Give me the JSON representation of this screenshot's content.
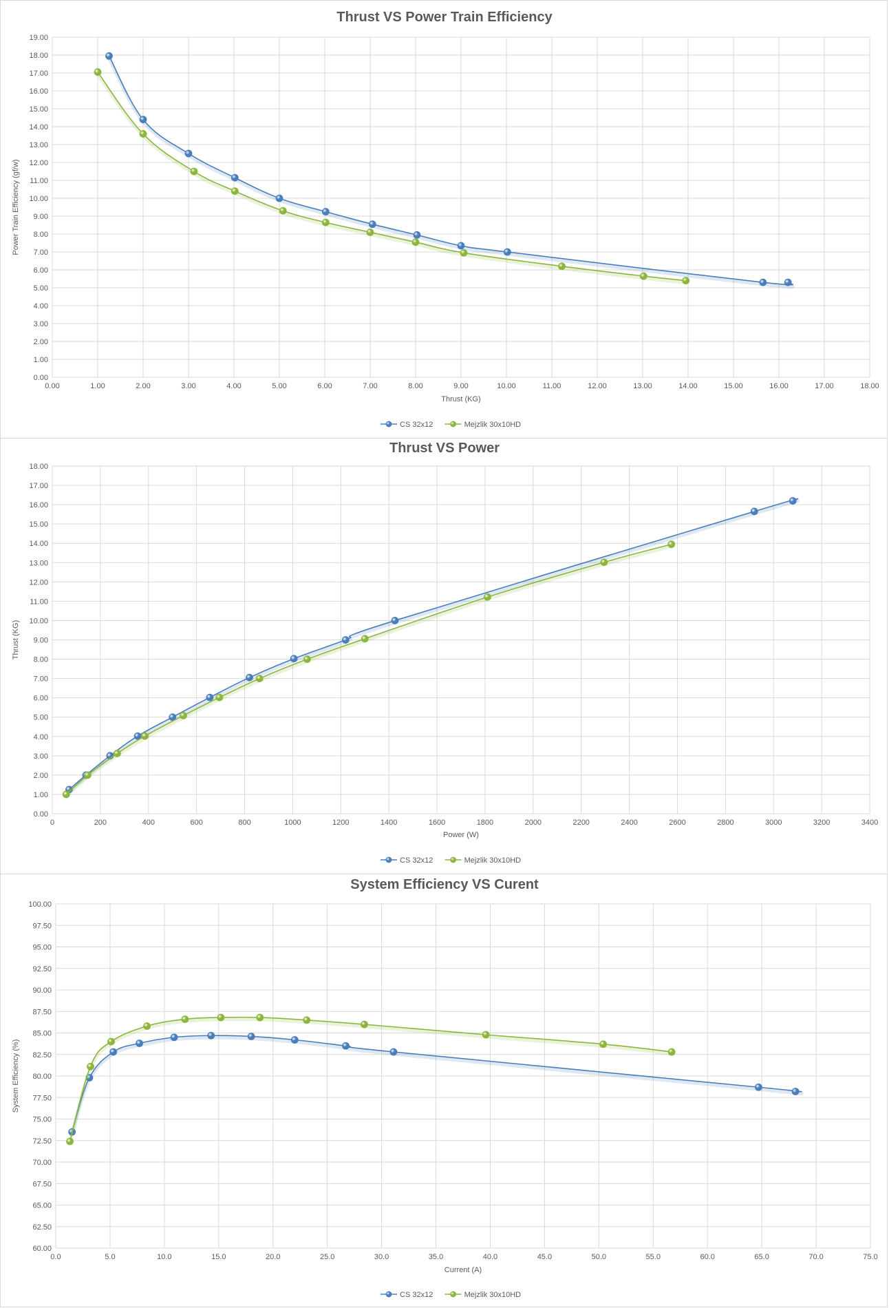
{
  "chart_data": [
    {
      "type": "line",
      "title": "Thrust VS Power Train Efficiency",
      "xlabel": "Thrust (KG)",
      "ylabel": "Power Train Efficiency (gf/w)",
      "xlim": [
        0,
        18
      ],
      "ylim": [
        0,
        19
      ],
      "x_ticks": [
        "0.00",
        "1.00",
        "2.00",
        "3.00",
        "4.00",
        "5.00",
        "6.00",
        "7.00",
        "8.00",
        "9.00",
        "10.00",
        "11.00",
        "12.00",
        "13.00",
        "14.00",
        "15.00",
        "16.00",
        "17.00",
        "18.00"
      ],
      "y_ticks": [
        "0.00",
        "1.00",
        "2.00",
        "3.00",
        "4.00",
        "5.00",
        "6.00",
        "7.00",
        "8.00",
        "9.00",
        "10.00",
        "11.00",
        "12.00",
        "13.00",
        "14.00",
        "15.00",
        "16.00",
        "17.00",
        "18.00",
        "19.00"
      ],
      "grid": true,
      "legend_position": "bottom",
      "series": [
        {
          "name": "CS 32x12",
          "color": "#4a7ebb",
          "x": [
            1.25,
            2.0,
            3.0,
            4.02,
            5.0,
            6.02,
            7.05,
            8.03,
            9.0,
            10.02,
            15.65,
            16.2
          ],
          "y": [
            17.95,
            14.4,
            12.5,
            11.15,
            10.0,
            9.25,
            8.55,
            7.95,
            7.35,
            7.0,
            5.3,
            5.3
          ]
        },
        {
          "name": "Mejzlik 30x10HD",
          "color": "#8cb53d",
          "x": [
            1.0,
            2.0,
            3.12,
            4.02,
            5.08,
            6.02,
            7.0,
            8.0,
            9.06,
            11.22,
            13.02,
            13.95
          ],
          "y": [
            17.05,
            13.6,
            11.5,
            10.4,
            9.3,
            8.65,
            8.1,
            7.55,
            6.95,
            6.2,
            5.65,
            5.4
          ]
        }
      ]
    },
    {
      "type": "line",
      "title": "Thrust VS Power",
      "xlabel": "Power (W)",
      "ylabel": "Thrust (KG)",
      "xlim": [
        0,
        3400
      ],
      "ylim": [
        0,
        18
      ],
      "x_ticks": [
        "0",
        "200",
        "400",
        "600",
        "800",
        "1000",
        "1200",
        "1400",
        "1600",
        "1800",
        "2000",
        "2200",
        "2400",
        "2600",
        "2800",
        "3000",
        "3200",
        "3400"
      ],
      "y_ticks": [
        "0.00",
        "1.00",
        "2.00",
        "3.00",
        "4.00",
        "5.00",
        "6.00",
        "7.00",
        "8.00",
        "9.00",
        "10.00",
        "11.00",
        "12.00",
        "13.00",
        "14.00",
        "15.00",
        "16.00",
        "17.00",
        "18.00"
      ],
      "grid": true,
      "legend_position": "bottom",
      "series": [
        {
          "name": "CS 32x12",
          "color": "#4a7ebb",
          "x": [
            70,
            140,
            240,
            355,
            500,
            655,
            820,
            1005,
            1220,
            1425,
            2920,
            3080
          ],
          "y": [
            1.25,
            2.0,
            3.0,
            4.02,
            5.0,
            6.02,
            7.05,
            8.03,
            9.0,
            10.0,
            15.65,
            16.2
          ]
        },
        {
          "name": "Mejzlik 30x10HD",
          "color": "#8cb53d",
          "x": [
            58,
            147,
            270,
            385,
            545,
            695,
            862,
            1060,
            1300,
            1810,
            2295,
            2575
          ],
          "y": [
            1.0,
            2.0,
            3.12,
            4.02,
            5.08,
            6.02,
            7.0,
            8.0,
            9.06,
            11.22,
            13.02,
            13.95
          ]
        }
      ]
    },
    {
      "type": "line",
      "title": "System Efficiency VS Curent",
      "xlabel": "Current (A)",
      "ylabel": "System Efficiency (%)",
      "xlim": [
        0,
        75
      ],
      "ylim": [
        60,
        100
      ],
      "x_ticks": [
        "0.0",
        "5.0",
        "10.0",
        "15.0",
        "20.0",
        "25.0",
        "30.0",
        "35.0",
        "40.0",
        "45.0",
        "50.0",
        "55.0",
        "60.0",
        "65.0",
        "70.0",
        "75.0"
      ],
      "y_ticks": [
        "60.00",
        "62.50",
        "65.00",
        "67.50",
        "70.00",
        "72.50",
        "75.00",
        "77.50",
        "80.00",
        "82.50",
        "85.00",
        "87.50",
        "90.00",
        "92.50",
        "95.00",
        "97.50",
        "100.00"
      ],
      "grid": true,
      "legend_position": "bottom",
      "series": [
        {
          "name": "CS 32x12",
          "color": "#4a7ebb",
          "x": [
            1.5,
            3.1,
            5.3,
            7.7,
            10.9,
            14.3,
            18.0,
            22.0,
            26.7,
            31.1,
            64.7,
            68.1
          ],
          "y": [
            73.5,
            79.8,
            82.8,
            83.8,
            84.5,
            84.7,
            84.6,
            84.2,
            83.5,
            82.8,
            78.7,
            78.2
          ]
        },
        {
          "name": "Mejzlik 30x10HD",
          "color": "#8cb53d",
          "x": [
            1.3,
            3.2,
            5.1,
            8.4,
            11.9,
            15.2,
            18.8,
            23.1,
            28.4,
            39.6,
            50.4,
            56.7
          ],
          "y": [
            72.4,
            81.1,
            84.0,
            85.8,
            86.6,
            86.8,
            86.8,
            86.5,
            86.0,
            84.8,
            83.7,
            82.8
          ]
        }
      ]
    }
  ]
}
